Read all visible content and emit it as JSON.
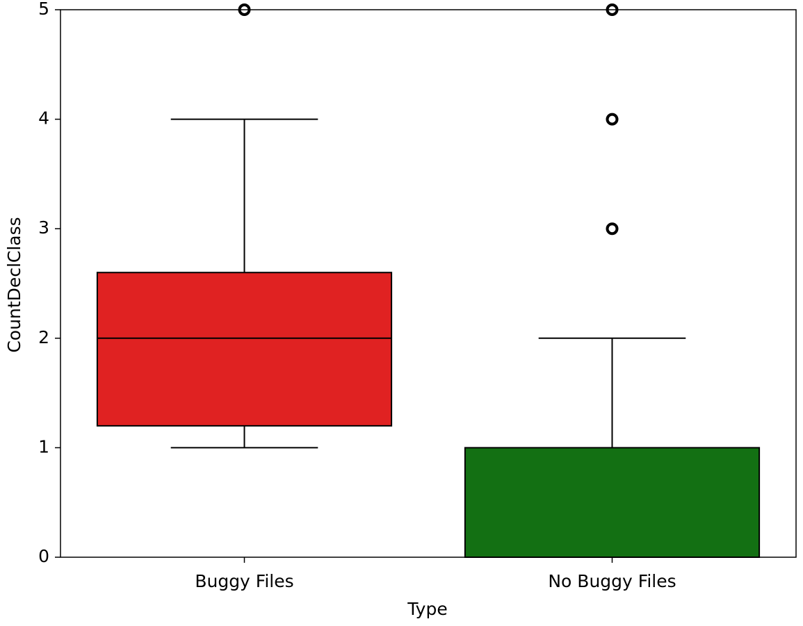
{
  "chart_data": {
    "type": "box",
    "x_label": "Type",
    "y_label": "CountDeclClass",
    "categories": [
      "Buggy Files",
      "No Buggy Files"
    ],
    "boxes": [
      {
        "color": "#e02222",
        "whislo": 1,
        "q1": 1.2,
        "med": 2,
        "q3": 2.6,
        "whishi": 4,
        "fliers": [
          5
        ]
      },
      {
        "color": "#137013",
        "whislo": 0,
        "q1": 0,
        "med": 0,
        "q3": 1,
        "whishi": 2,
        "fliers": [
          3,
          4,
          5
        ]
      }
    ],
    "ylim": [
      0,
      5
    ],
    "yticks": [
      0,
      1,
      2,
      3,
      4,
      5
    ]
  }
}
